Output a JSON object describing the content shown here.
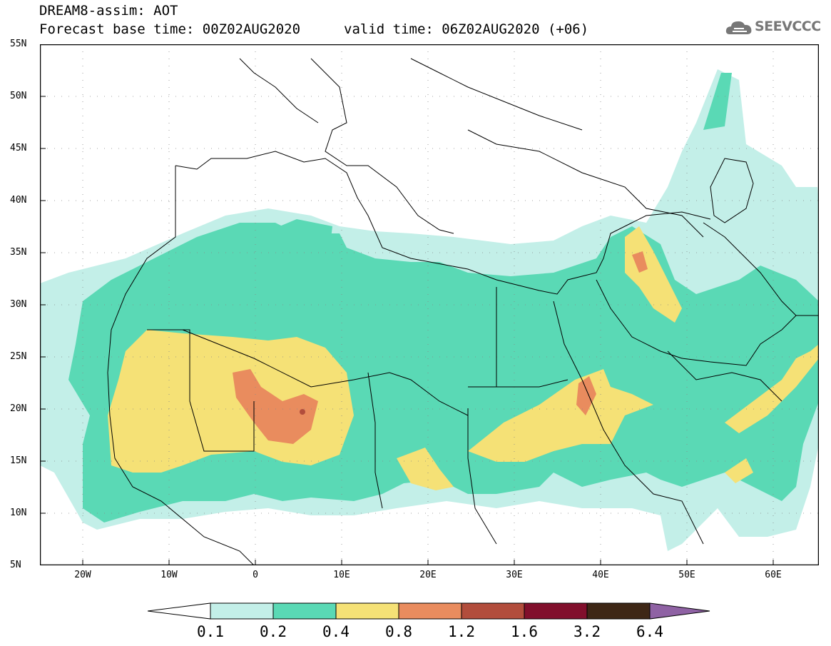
{
  "header": {
    "title_line1": "DREAM8-assim: AOT",
    "title_line2": "Forecast base time: 00Z02AUG2020",
    "valid_time": "valid time: 06Z02AUG2020 (+06)",
    "logo_text": "SEEVCCC"
  },
  "axes": {
    "lat_labels": [
      "55N",
      "50N",
      "45N",
      "40N",
      "35N",
      "30N",
      "25N",
      "20N",
      "15N",
      "10N",
      "5N"
    ],
    "lon_labels": [
      "20W",
      "10W",
      "0",
      "10E",
      "20E",
      "30E",
      "40E",
      "50E",
      "60E"
    ]
  },
  "colorbar": {
    "labels": [
      "0.1",
      "0.2",
      "0.4",
      "0.8",
      "1.2",
      "1.6",
      "3.2",
      "6.4"
    ],
    "colors": [
      "#c3efe8",
      "#5ad9b5",
      "#f5e176",
      "#e98c5e",
      "#b24d3c",
      "#810f2c",
      "#3e2716",
      "#8f62a4"
    ]
  },
  "map": {
    "field": "AOT",
    "background": "#ffffff",
    "border_color": "#000000"
  }
}
